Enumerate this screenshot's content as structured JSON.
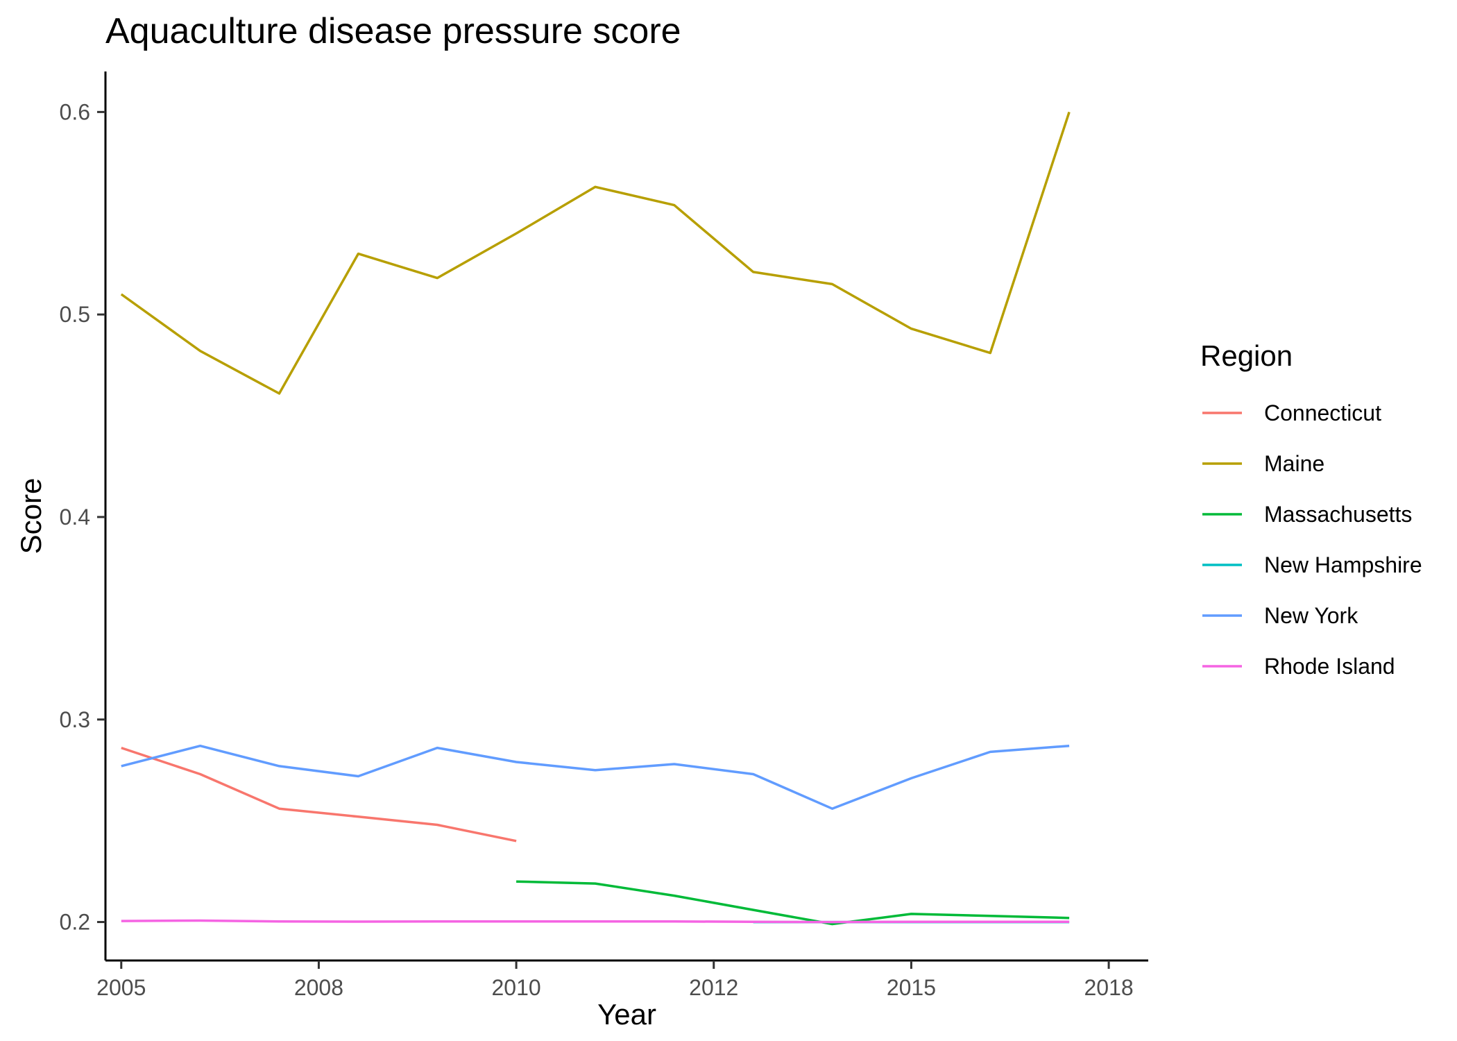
{
  "chart_data": {
    "type": "line",
    "title": "Aquaculture disease pressure score",
    "xlabel": "Year",
    "ylabel": "Score",
    "xlim": [
      2004.8,
      2018.0
    ],
    "ylim": [
      0.181,
      0.62
    ],
    "x_ticks": [
      {
        "value": 2005,
        "label": "2005"
      },
      {
        "value": 2007.5,
        "label": "2008"
      },
      {
        "value": 2010,
        "label": "2010"
      },
      {
        "value": 2012.5,
        "label": "2012"
      },
      {
        "value": 2015,
        "label": "2015"
      },
      {
        "value": 2017.5,
        "label": "2018"
      }
    ],
    "y_ticks": [
      {
        "value": 0.2,
        "label": "0.2"
      },
      {
        "value": 0.3,
        "label": "0.3"
      },
      {
        "value": 0.4,
        "label": "0.4"
      },
      {
        "value": 0.5,
        "label": "0.5"
      },
      {
        "value": 0.6,
        "label": "0.6"
      }
    ],
    "grid": false,
    "legend": {
      "title": "Region",
      "position": "right"
    },
    "series": [
      {
        "name": "Connecticut",
        "color": "#F8766D",
        "x": [
          2005,
          2006,
          2007,
          2008,
          2009,
          2010
        ],
        "y": [
          0.286,
          0.273,
          0.256,
          0.252,
          0.248,
          0.24
        ]
      },
      {
        "name": "Maine",
        "color": "#B79F00",
        "x": [
          2005,
          2006,
          2007,
          2008,
          2009,
          2010,
          2011,
          2012,
          2013,
          2014,
          2015,
          2016,
          2017
        ],
        "y": [
          0.51,
          0.482,
          0.461,
          0.53,
          0.518,
          0.54,
          0.563,
          0.554,
          0.521,
          0.515,
          0.493,
          0.481,
          0.6
        ]
      },
      {
        "name": "Massachusetts",
        "color": "#00BA38",
        "x": [
          2010,
          2011,
          2012,
          2013,
          2014,
          2015,
          2016,
          2017
        ],
        "y": [
          0.22,
          0.219,
          0.213,
          0.206,
          0.199,
          0.204,
          0.203,
          0.202
        ]
      },
      {
        "name": "New Hampshire",
        "color": "#00BFC4",
        "x": [
          2013,
          2014,
          2015,
          2016,
          2017
        ],
        "y": [
          0.2,
          0.2,
          0.2,
          0.2,
          0.2
        ]
      },
      {
        "name": "New York",
        "color": "#619CFF",
        "x": [
          2005,
          2006,
          2007,
          2008,
          2009,
          2010,
          2011,
          2012,
          2013,
          2014,
          2015,
          2016,
          2017
        ],
        "y": [
          0.277,
          0.287,
          0.277,
          0.272,
          0.286,
          0.279,
          0.275,
          0.278,
          0.273,
          0.256,
          0.271,
          0.284,
          0.287
        ]
      },
      {
        "name": "Rhode Island",
        "color": "#F564E3",
        "x": [
          2005,
          2006,
          2007,
          2008,
          2009,
          2010,
          2011,
          2012,
          2013,
          2014,
          2015,
          2016,
          2017
        ],
        "y": [
          0.2005,
          0.2007,
          0.2003,
          0.2002,
          0.2003,
          0.2003,
          0.2003,
          0.2003,
          0.2001,
          0.2,
          0.2001,
          0.2001,
          0.2001
        ]
      }
    ]
  }
}
